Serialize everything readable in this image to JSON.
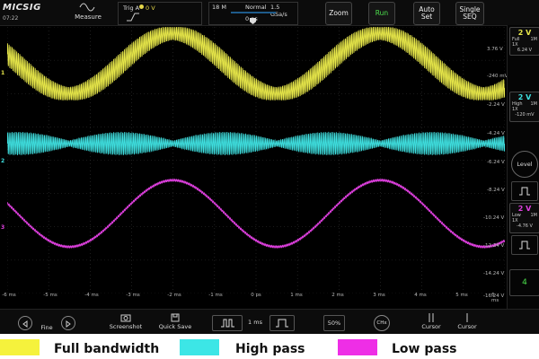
{
  "header": {
    "logo": "MICSIG",
    "time": "07:22",
    "measure_label": "Measure",
    "trig_label": "Trig A",
    "trig_level": "0 V",
    "memory_depth": "18 M",
    "acq_mode": "Normal",
    "sample_rate": "1.5 GSa/s",
    "trigger_offset": "0 ps",
    "zoom_label": "Zoom",
    "run_label": "Run",
    "autoset_label": "Auto Set",
    "single_label": "Single SEQ"
  },
  "y_scale": [
    "3.76 V",
    "-240 mV",
    "-2.24 V",
    "-4.24 V",
    "-6.24 V",
    "-8.24 V",
    "-10.24 V",
    "-12.24 V",
    "-14.24 V",
    "-16.24 V"
  ],
  "x_scale": [
    "-6 ms",
    "-5 ms",
    "-4 ms",
    "-3 ms",
    "-2 ms",
    "-1 ms",
    "0 ps",
    "1 ms",
    "2 ms",
    "3 ms",
    "4 ms",
    "5 ms",
    "6 ms"
  ],
  "channels": [
    {
      "marker": "1",
      "volts": "2 V",
      "bw": "Full",
      "probe": "1X",
      "imp": "1M",
      "offset": "6.24 V",
      "color": "#e8e84a"
    },
    {
      "marker": "2",
      "volts": "2 V",
      "bw": "High",
      "probe": "1X",
      "imp": "1M",
      "offset": "-120 mV",
      "color": "#3fe0e0"
    },
    {
      "marker": "3",
      "volts": "2 V",
      "bw": "Low",
      "probe": "1X",
      "imp": "1M",
      "offset": "-4.76 V",
      "color": "#e040e0"
    }
  ],
  "side": {
    "level_label": "Level",
    "page_number": "4"
  },
  "bottom": {
    "fine_label": "Fine",
    "screenshot_label": "Screenshot",
    "quicksave_label": "Quick Save",
    "timebase": "1 ms",
    "percent": "50%",
    "chx_label": "CHx",
    "cursor1_label": "Cursor",
    "cursor2_label": "Cursor"
  },
  "legend": [
    {
      "label": "Full bandwidth",
      "color": "#f5f23c"
    },
    {
      "label": "High pass",
      "color": "#3ce6e6"
    },
    {
      "label": "Low pass",
      "color": "#ee2ee6"
    }
  ],
  "chart_data": {
    "type": "line",
    "xlabel": "",
    "ylabel": "",
    "x_range_ms": [
      -6,
      6
    ],
    "series": [
      {
        "name": "Full bandwidth",
        "shape": "low-frequency sine with high-frequency ripple",
        "low_freq_period_ms": 5,
        "low_amplitude_div": 0.9,
        "ripple_amplitude_div": 0.35,
        "center_div": 1.1
      },
      {
        "name": "High pass",
        "shape": "high-frequency ripple, envelope-modulated",
        "envelope_period_ms": 2.5,
        "amplitude_div": 0.35,
        "center_div": 3.5
      },
      {
        "name": "Low pass",
        "shape": "low-frequency sine",
        "low_freq_period_ms": 5,
        "amplitude_div": 1.0,
        "center_div": 5.6
      }
    ]
  }
}
